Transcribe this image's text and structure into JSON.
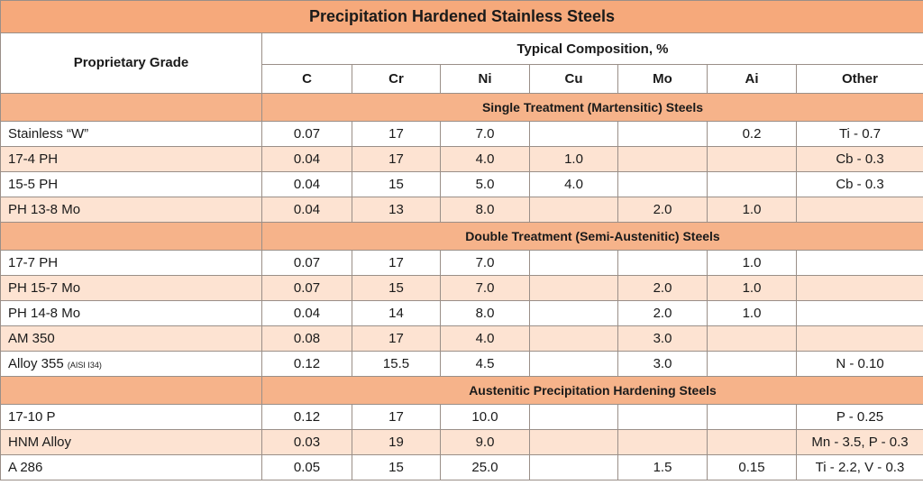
{
  "title": "Precipitation Hardened Stainless Steels",
  "header": {
    "grade": "Proprietary Grade",
    "composition": "Typical Composition, %",
    "columns": [
      "C",
      "Cr",
      "Ni",
      "Cu",
      "Mo",
      "Ai",
      "Other"
    ]
  },
  "sections": [
    {
      "label": "Single Treatment (Martensitic) Steels",
      "rows": [
        {
          "name": "Stainless “W”",
          "note": "",
          "values": [
            "0.07",
            "17",
            "7.0",
            "",
            "",
            "0.2",
            "Ti - 0.7"
          ]
        },
        {
          "name": "17-4 PH",
          "note": "",
          "values": [
            "0.04",
            "17",
            "4.0",
            "1.0",
            "",
            "",
            "Cb - 0.3"
          ]
        },
        {
          "name": "15-5 PH",
          "note": "",
          "values": [
            "0.04",
            "15",
            "5.0",
            "4.0",
            "",
            "",
            "Cb - 0.3"
          ]
        },
        {
          "name": "PH 13-8 Mo",
          "note": "",
          "values": [
            "0.04",
            "13",
            "8.0",
            "",
            "2.0",
            "1.0",
            ""
          ]
        }
      ]
    },
    {
      "label": "Double Treatment (Semi-Austenitic) Steels",
      "rows": [
        {
          "name": "17-7 PH",
          "note": "",
          "values": [
            "0.07",
            "17",
            "7.0",
            "",
            "",
            "1.0",
            ""
          ]
        },
        {
          "name": "PH 15-7 Mo",
          "note": "",
          "values": [
            "0.07",
            "15",
            "7.0",
            "",
            "2.0",
            "1.0",
            ""
          ]
        },
        {
          "name": "PH 14-8 Mo",
          "note": "",
          "values": [
            "0.04",
            "14",
            "8.0",
            "",
            "2.0",
            "1.0",
            ""
          ]
        },
        {
          "name": "AM 350",
          "note": "",
          "values": [
            "0.08",
            "17",
            "4.0",
            "",
            "3.0",
            "",
            ""
          ]
        },
        {
          "name": "Alloy 355",
          "note": "(AISI I34)",
          "values": [
            "0.12",
            "15.5",
            "4.5",
            "",
            "3.0",
            "",
            "N - 0.10"
          ]
        }
      ]
    },
    {
      "label": "Austenitic Precipitation Hardening Steels",
      "rows": [
        {
          "name": "17-10 P",
          "note": "",
          "values": [
            "0.12",
            "17",
            "10.0",
            "",
            "",
            "",
            "P - 0.25"
          ]
        },
        {
          "name": "HNM Alloy",
          "note": "",
          "values": [
            "0.03",
            "19",
            "9.0",
            "",
            "",
            "",
            "Mn - 3.5, P - 0.3"
          ]
        },
        {
          "name": "A 286",
          "note": "",
          "values": [
            "0.05",
            "15",
            "25.0",
            "",
            "1.5",
            "0.15",
            "Ti - 2.2, V - 0.3"
          ]
        }
      ]
    }
  ]
}
